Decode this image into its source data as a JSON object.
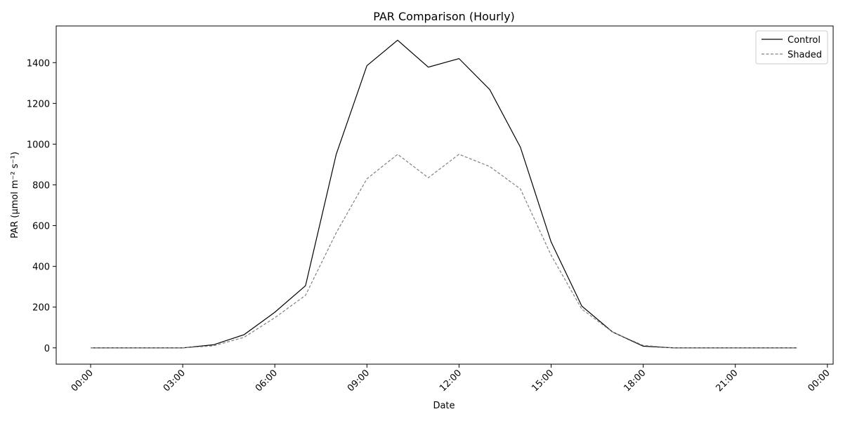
{
  "chart_data": {
    "type": "line",
    "title": "PAR Comparison (Hourly)",
    "xlabel": "Date",
    "ylabel": "PAR (µmol m⁻² s⁻¹)",
    "x": [
      "00:00",
      "01:00",
      "02:00",
      "03:00",
      "04:00",
      "05:00",
      "06:00",
      "07:00",
      "08:00",
      "09:00",
      "10:00",
      "11:00",
      "12:00",
      "13:00",
      "14:00",
      "15:00",
      "16:00",
      "17:00",
      "18:00",
      "19:00",
      "20:00",
      "21:00",
      "22:00",
      "23:00"
    ],
    "xticks": [
      "00:00",
      "03:00",
      "06:00",
      "09:00",
      "12:00",
      "15:00",
      "18:00",
      "21:00",
      "00:00"
    ],
    "yticks": [
      0,
      200,
      400,
      600,
      800,
      1000,
      1200,
      1400
    ],
    "ylim": [
      -80,
      1580
    ],
    "series": [
      {
        "name": "Control",
        "color": "#000000",
        "dash": "solid",
        "values": [
          0,
          0,
          0,
          0,
          15,
          65,
          175,
          305,
          950,
          1385,
          1510,
          1378,
          1420,
          1268,
          985,
          520,
          205,
          78,
          8,
          0,
          0,
          0,
          0,
          0
        ]
      },
      {
        "name": "Shaded",
        "color": "#808080",
        "dash": "dashed",
        "values": [
          0,
          0,
          0,
          0,
          10,
          52,
          148,
          258,
          565,
          830,
          950,
          835,
          950,
          890,
          780,
          455,
          190,
          78,
          12,
          0,
          0,
          0,
          0,
          0
        ]
      }
    ],
    "legend_position": "top-right",
    "grid": false
  }
}
